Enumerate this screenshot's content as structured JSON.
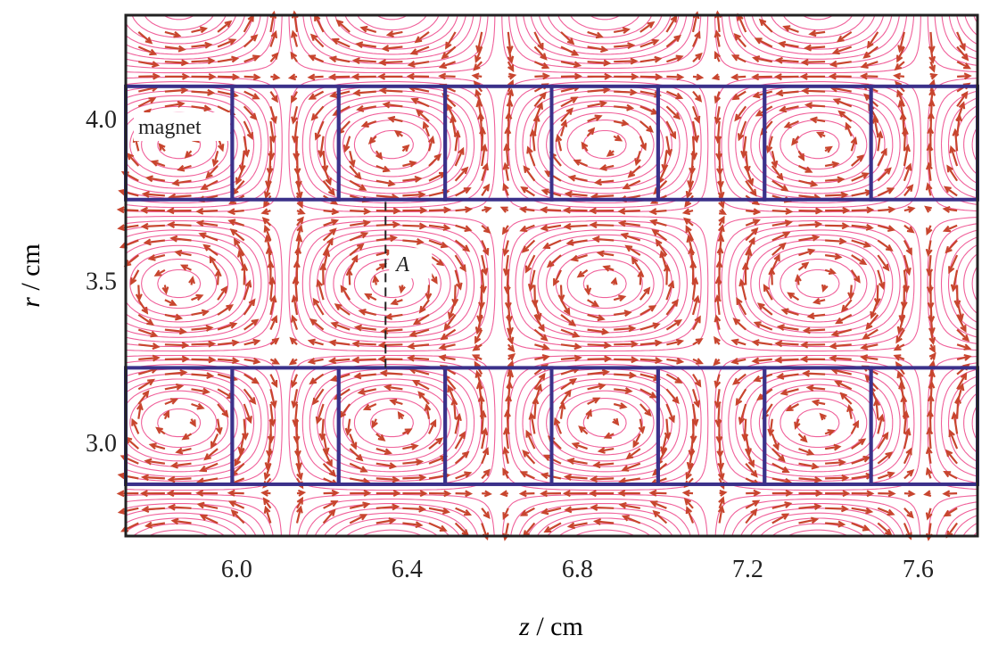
{
  "chart_data": {
    "type": "vector-field",
    "title": "",
    "xlabel": {
      "var": "z",
      "unit": " / cm"
    },
    "ylabel": {
      "var": "r",
      "unit": " / cm"
    },
    "xlim": [
      5.75,
      7.75
    ],
    "ylim": [
      2.71,
      4.32
    ],
    "xticks": [
      6.0,
      6.4,
      6.8,
      7.2,
      7.6
    ],
    "xtick_labels": [
      "6.0",
      "6.4",
      "6.8",
      "7.2",
      "7.6"
    ],
    "yticks": [
      3.0,
      3.5,
      4.0
    ],
    "ytick_labels": [
      "3.0",
      "3.5",
      "4.0"
    ],
    "grid": false,
    "magnet_rows": [
      {
        "r_min": 3.75,
        "r_max": 4.1
      },
      {
        "r_min": 2.87,
        "r_max": 3.23
      }
    ],
    "magnet_z_edges": [
      5.75,
      6.0,
      6.25,
      6.5,
      6.75,
      7.0,
      7.25,
      7.5,
      7.75
    ],
    "field_period_cm": 1.0,
    "annotations": {
      "magnet_label": "magnet",
      "line_label": "A",
      "line_z": 6.36,
      "line_r": [
        3.23,
        3.75
      ]
    },
    "colors": {
      "magnet_outline": "#3b318a",
      "field_lines": "#f0609a",
      "arrows": "#c8452e",
      "axes": "#222222"
    }
  }
}
